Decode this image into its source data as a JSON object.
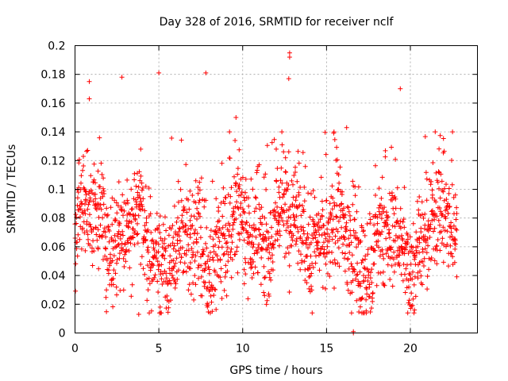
{
  "chart_data": {
    "type": "scatter",
    "title": "Day 328 of 2016, SRMTID for receiver nclf",
    "xlabel": "GPS time / hours",
    "ylabel": "SRMTID / TECUs",
    "xlim": [
      0,
      24
    ],
    "ylim": [
      0,
      0.2
    ],
    "xticks": [
      0,
      5,
      10,
      15,
      20
    ],
    "xtick_labels": [
      "0",
      "5",
      "10",
      "15",
      "20"
    ],
    "yticks": [
      0,
      0.02,
      0.04,
      0.06,
      0.08,
      0.1,
      0.12,
      0.14,
      0.16,
      0.18,
      0.2
    ],
    "ytick_labels": [
      "0",
      "0.02",
      "0.04",
      "0.06",
      "0.08",
      "0.1",
      "0.12",
      "0.14",
      "0.16",
      "0.18",
      "0.2"
    ],
    "grid": true,
    "marker": "plus",
    "color": "#ff0000",
    "data_x_range": [
      0.0,
      22.8
    ],
    "typical_y_range": [
      0.03,
      0.1
    ],
    "notable_points": [
      {
        "x": 0.85,
        "y": 0.175
      },
      {
        "x": 0.85,
        "y": 0.163
      },
      {
        "x": 2.8,
        "y": 0.178
      },
      {
        "x": 5.0,
        "y": 0.181
      },
      {
        "x": 7.8,
        "y": 0.181
      },
      {
        "x": 12.8,
        "y": 0.195
      },
      {
        "x": 12.8,
        "y": 0.192
      },
      {
        "x": 12.75,
        "y": 0.177
      },
      {
        "x": 19.4,
        "y": 0.17
      },
      {
        "x": 9.6,
        "y": 0.15
      },
      {
        "x": 16.2,
        "y": 0.143
      },
      {
        "x": 3.8,
        "y": 0.013
      },
      {
        "x": 16.6,
        "y": 0.0
      },
      {
        "x": 16.6,
        "y": 0.001
      }
    ]
  }
}
